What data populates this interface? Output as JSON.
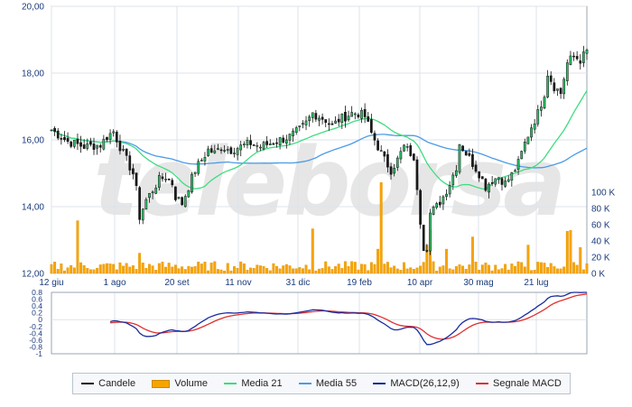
{
  "chart_data": {
    "type": "line",
    "brand_watermark": "teleborsa",
    "x_tick_labels": [
      "12 giu",
      "1 ago",
      "20 set",
      "11 nov",
      "31 dic",
      "19 feb",
      "10 apr",
      "30 mag",
      "21 lug"
    ],
    "price_axis": {
      "ylim": [
        12,
        20
      ],
      "tick_labels": [
        "20,00",
        "18,00",
        "16,00",
        "14,00",
        "12,00"
      ],
      "tick_values": [
        20,
        18,
        16,
        14,
        12
      ]
    },
    "volume_axis": {
      "ylim": [
        0,
        100000
      ],
      "tick_labels": [
        "100 K",
        "80 K",
        "60 K",
        "40 K",
        "20 K",
        "0 K"
      ],
      "tick_values": [
        100000,
        80000,
        60000,
        40000,
        20000,
        0
      ]
    },
    "macd_axis": {
      "ylim": [
        -1,
        0.8
      ],
      "tick_labels": [
        "0.8",
        "0.6",
        "0.4",
        "0.2",
        "0",
        "-0.2",
        "-0.4",
        "-0.6",
        "-0.8",
        "-1"
      ],
      "tick_values": [
        0.8,
        0.6,
        0.4,
        0.2,
        0,
        -0.2,
        -0.4,
        -0.6,
        -0.8,
        -1
      ]
    },
    "price_close_keypoints": [
      [
        0,
        16.3
      ],
      [
        5,
        15.95
      ],
      [
        10,
        15.8
      ],
      [
        15,
        15.85
      ],
      [
        17,
        16.1
      ],
      [
        19,
        16.25
      ],
      [
        21,
        15.8
      ],
      [
        23,
        15.4
      ],
      [
        25,
        15.0
      ],
      [
        26,
        14.5
      ],
      [
        27,
        13.7
      ],
      [
        29,
        14.2
      ],
      [
        31,
        14.5
      ],
      [
        33,
        14.8
      ],
      [
        35,
        14.9
      ],
      [
        37,
        14.7
      ],
      [
        38,
        14.3
      ],
      [
        40,
        14.1
      ],
      [
        42,
        14.6
      ],
      [
        44,
        15.1
      ],
      [
        46,
        15.4
      ],
      [
        48,
        15.7
      ],
      [
        50,
        15.6
      ],
      [
        52,
        15.8
      ],
      [
        55,
        15.7
      ],
      [
        58,
        15.8
      ],
      [
        61,
        15.9
      ],
      [
        64,
        15.8
      ],
      [
        67,
        15.9
      ],
      [
        70,
        16.0
      ],
      [
        73,
        16.1
      ],
      [
        76,
        16.3
      ],
      [
        78,
        16.5
      ],
      [
        80,
        16.8
      ],
      [
        82,
        16.7
      ],
      [
        84,
        16.6
      ],
      [
        86,
        16.4
      ],
      [
        88,
        16.6
      ],
      [
        90,
        16.7
      ],
      [
        92,
        16.8
      ],
      [
        94,
        16.8
      ],
      [
        96,
        16.7
      ],
      [
        98,
        16.2
      ],
      [
        100,
        15.8
      ],
      [
        102,
        15.4
      ],
      [
        104,
        15.1
      ],
      [
        106,
        15.4
      ],
      [
        108,
        15.8
      ],
      [
        110,
        15.6
      ],
      [
        111,
        15.3
      ],
      [
        112,
        14.6
      ],
      [
        113,
        13.6
      ],
      [
        114,
        12.8
      ],
      [
        115,
        12.8
      ],
      [
        116,
        13.8
      ],
      [
        118,
        14.0
      ],
      [
        120,
        14.3
      ],
      [
        122,
        14.7
      ],
      [
        124,
        15.2
      ],
      [
        125,
        15.9
      ],
      [
        127,
        15.6
      ],
      [
        129,
        15.3
      ],
      [
        131,
        15.0
      ],
      [
        133,
        14.6
      ],
      [
        135,
        14.8
      ],
      [
        137,
        14.9
      ],
      [
        139,
        14.7
      ],
      [
        141,
        14.95
      ],
      [
        143,
        15.3
      ],
      [
        145,
        15.9
      ],
      [
        147,
        16.4
      ],
      [
        149,
        16.8
      ],
      [
        151,
        17.4
      ],
      [
        152,
        18.0
      ],
      [
        154,
        17.6
      ],
      [
        156,
        17.4
      ],
      [
        158,
        18.3
      ],
      [
        160,
        18.5
      ],
      [
        162,
        18.4
      ],
      [
        164,
        18.65
      ]
    ],
    "volume_spike_keypoints": [
      [
        8,
        65000
      ],
      [
        27,
        25000
      ],
      [
        80,
        55000
      ],
      [
        100,
        30000
      ],
      [
        101,
        112000
      ],
      [
        115,
        35000
      ],
      [
        116,
        54000
      ],
      [
        121,
        30000
      ],
      [
        129,
        45000
      ],
      [
        146,
        35000
      ],
      [
        158,
        52000
      ],
      [
        159,
        53000
      ],
      [
        162,
        32000
      ]
    ],
    "legend": [
      {
        "label": "Candele",
        "color": "#111111",
        "kind": "line"
      },
      {
        "label": "Volume",
        "color": "#f7a400",
        "kind": "box"
      },
      {
        "label": "Media 21",
        "color": "#3fdd80",
        "kind": "line"
      },
      {
        "label": "Media 55",
        "color": "#4a9be6",
        "kind": "line"
      },
      {
        "label": "MACD(26,12,9)",
        "color": "#1a2b9e",
        "kind": "line"
      },
      {
        "label": "Segnale MACD",
        "color": "#e03030",
        "kind": "line"
      }
    ]
  }
}
